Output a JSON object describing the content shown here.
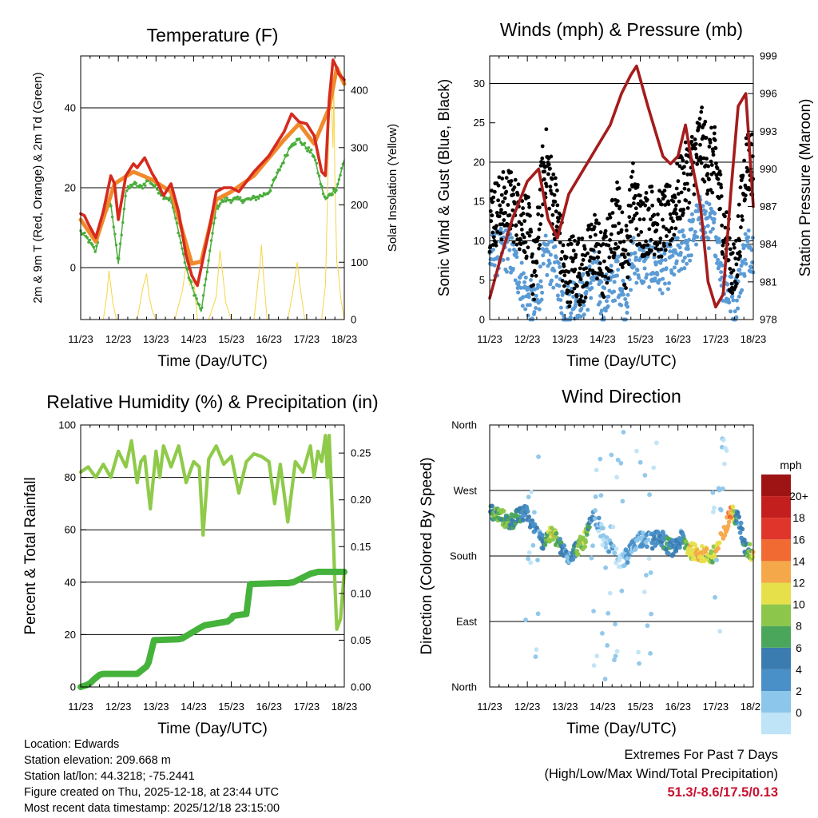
{
  "chart_data": [
    {
      "id": "temperature",
      "type": "line",
      "title": "Temperature (F)",
      "xlabel": "Time (Day/UTC)",
      "ylabel": "2m & 9m T (Red, Orange) & 2m Td (Green)",
      "ylabel_right": "Solar Insolation (Yellow)",
      "xlim": [
        0,
        7
      ],
      "x_ticks": [
        "11/23",
        "12/23",
        "13/23",
        "14/23",
        "15/23",
        "16/23",
        "17/23",
        "18/23"
      ],
      "ylim": [
        -13,
        53
      ],
      "y_ticks": [
        0,
        20,
        40
      ],
      "ylim_right": [
        0,
        460
      ],
      "y_ticks_right": [
        0,
        100,
        200,
        300,
        400
      ],
      "grid_y": [
        0,
        20,
        40
      ],
      "series": [
        {
          "name": "2m T",
          "color": "#d62a1e",
          "x": [
            0,
            0.1,
            0.2,
            0.4,
            0.6,
            0.8,
            0.9,
            1.0,
            1.2,
            1.4,
            1.5,
            1.7,
            1.9,
            2.0,
            2.2,
            2.4,
            2.6,
            2.8,
            2.95,
            3.1,
            3.2,
            3.4,
            3.6,
            3.8,
            4.0,
            4.2,
            4.4,
            4.6,
            4.8,
            5.0,
            5.2,
            5.4,
            5.6,
            5.8,
            6.0,
            6.2,
            6.4,
            6.5,
            6.6,
            6.7,
            6.8,
            6.85,
            7.0
          ],
          "values": [
            13.5,
            13,
            11,
            7.5,
            14,
            23,
            21,
            12,
            23,
            26,
            25,
            27.5,
            23.5,
            22,
            18,
            21,
            14,
            3,
            -2,
            -4.5,
            0,
            9,
            19,
            20,
            20,
            19,
            21.5,
            24,
            26,
            28,
            31,
            34,
            38.5,
            36.5,
            36,
            33,
            24,
            23,
            42,
            52,
            50,
            48.5,
            47
          ]
        },
        {
          "name": "9m T",
          "color": "#f08a2c",
          "x": [
            0,
            0.4,
            0.9,
            1.4,
            1.9,
            2.4,
            2.95,
            3.2,
            3.6,
            4.0,
            4.6,
            5.4,
            5.8,
            6.2,
            6.6,
            6.8,
            7.0
          ],
          "values": [
            12,
            6.5,
            21,
            24,
            22,
            19,
            1,
            1.5,
            17,
            19,
            23,
            32,
            36,
            31,
            40,
            50,
            46
          ]
        },
        {
          "name": "2m Td",
          "color": "#49ad3a",
          "x": [
            0,
            0.2,
            0.4,
            0.6,
            0.8,
            1.0,
            1.2,
            1.4,
            1.6,
            1.8,
            2.0,
            2.2,
            2.4,
            2.6,
            2.8,
            3.0,
            3.2,
            3.4,
            3.6,
            3.8,
            4.0,
            4.2,
            4.5,
            4.8,
            5.0,
            5.3,
            5.6,
            5.8,
            6.0,
            6.2,
            6.4,
            6.5,
            6.6,
            6.8,
            7.0
          ],
          "values": [
            9,
            7,
            4,
            14,
            16,
            1,
            19,
            21,
            20,
            22,
            20,
            18,
            17,
            9,
            0,
            -6,
            -11,
            2,
            15,
            17,
            17,
            17,
            17,
            18,
            19,
            25,
            31,
            32,
            30,
            28,
            20,
            17,
            18,
            20,
            27
          ]
        },
        {
          "name": "Solar Insolation",
          "color": "#f5d547",
          "axis": "right",
          "x": [
            0,
            0.6,
            0.7,
            0.75,
            0.8,
            0.85,
            0.95,
            1.5,
            1.65,
            1.75,
            1.82,
            1.9,
            2.0,
            2.5,
            2.7,
            2.8,
            2.9,
            3.0,
            3.1,
            3.4,
            3.6,
            3.7,
            3.78,
            3.85,
            4.0,
            4.6,
            4.75,
            4.8,
            4.85,
            4.95,
            5.5,
            5.65,
            5.75,
            5.82,
            5.95,
            6.4,
            6.5,
            6.55,
            6.6,
            6.65,
            6.7,
            6.72,
            6.75,
            6.8,
            6.85,
            6.9,
            7.0
          ],
          "values": [
            0,
            0,
            45,
            85,
            60,
            30,
            0,
            0,
            55,
            80,
            40,
            15,
            0,
            0,
            50,
            95,
            60,
            70,
            0,
            0,
            40,
            120,
            75,
            30,
            0,
            0,
            90,
            130,
            80,
            0,
            0,
            55,
            100,
            60,
            0,
            0,
            60,
            200,
            360,
            390,
            300,
            420,
            250,
            100,
            80,
            40,
            0
          ]
        }
      ]
    },
    {
      "id": "winds",
      "type": "scatter",
      "title": "Winds (mph) & Pressure (mb)",
      "xlabel": "Time (Day/UTC)",
      "ylabel": "Sonic Wind & Gust (Blue, Black)",
      "ylabel_right": "Station Pressure (Maroon)",
      "xlim": [
        0,
        7
      ],
      "x_ticks": [
        "11/23",
        "12/23",
        "13/23",
        "14/23",
        "15/23",
        "16/23",
        "17/23",
        "18/23"
      ],
      "ylim": [
        0,
        33.5
      ],
      "y_ticks": [
        0,
        5,
        10,
        15,
        20,
        25,
        30
      ],
      "ylim_right": [
        978,
        999
      ],
      "y_ticks_right": [
        978,
        981,
        984,
        987,
        990,
        993,
        996,
        999
      ],
      "grid_y": [
        10,
        20,
        30
      ],
      "wind_envelope": {
        "x": [
          0,
          0.5,
          1.0,
          1.2,
          1.4,
          1.5,
          1.8,
          2.0,
          2.2,
          2.5,
          2.8,
          3.0,
          3.4,
          3.6,
          3.8,
          4.0,
          4.3,
          4.5,
          4.8,
          5.0,
          5.3,
          5.5,
          5.6,
          5.8,
          6.0,
          6.2,
          6.5,
          6.8,
          7.0
        ],
        "speed": [
          8,
          9,
          3,
          1,
          6,
          8,
          6,
          1,
          3,
          3,
          6,
          2,
          6,
          2,
          8,
          7,
          7,
          6,
          7,
          8,
          10,
          12,
          13,
          12,
          11,
          5,
          2,
          9,
          9
        ],
        "gust": [
          13,
          15,
          12,
          5,
          18,
          20,
          13,
          5,
          7,
          6,
          10,
          6,
          14,
          7,
          16,
          12,
          13,
          12,
          13,
          16,
          19,
          21,
          23,
          20,
          20,
          12,
          5,
          20,
          20
        ]
      },
      "series": [
        {
          "name": "Station Pressure",
          "color": "#a51c1c",
          "axis": "right",
          "x": [
            0,
            0.3,
            0.6,
            1.0,
            1.3,
            1.55,
            1.8,
            2.1,
            2.5,
            2.9,
            3.2,
            3.5,
            3.75,
            3.9,
            4.2,
            4.4,
            4.6,
            4.8,
            5.0,
            5.2,
            5.4,
            5.6,
            5.8,
            6.0,
            6.2,
            6.4,
            6.6,
            6.8,
            7.0
          ],
          "values": [
            979.7,
            983,
            986,
            989,
            990,
            986,
            984.5,
            988,
            990,
            992,
            993.5,
            996,
            997.5,
            998.2,
            995,
            993,
            991,
            990.4,
            991,
            993.5,
            990,
            987,
            981,
            979,
            980,
            988,
            995,
            996,
            987
          ]
        }
      ]
    },
    {
      "id": "humidity",
      "type": "line",
      "title": "Relative Humidity (%) & Precipitation (in)",
      "xlabel": "Time (Day/UTC)",
      "ylabel": "Percent & Total Rainfall",
      "xlim": [
        0,
        7
      ],
      "x_ticks": [
        "11/23",
        "12/23",
        "13/23",
        "14/23",
        "15/23",
        "16/23",
        "17/23",
        "18/23"
      ],
      "ylim": [
        0,
        100
      ],
      "y_ticks": [
        0,
        20,
        40,
        60,
        80,
        100
      ],
      "ylim_right": [
        0,
        0.28
      ],
      "y_ticks_right": [
        "0.00",
        "0.05",
        "0.10",
        "0.15",
        "0.20",
        "0.25"
      ],
      "grid_y": [
        20,
        40,
        60,
        80
      ],
      "series": [
        {
          "name": "Relative Humidity",
          "color": "#8fca4a",
          "x": [
            0,
            0.2,
            0.4,
            0.6,
            0.8,
            1.0,
            1.2,
            1.35,
            1.5,
            1.6,
            1.7,
            1.85,
            2.0,
            2.1,
            2.2,
            2.4,
            2.6,
            2.8,
            3.0,
            3.15,
            3.25,
            3.4,
            3.6,
            3.8,
            4.0,
            4.2,
            4.4,
            4.6,
            4.8,
            5.0,
            5.15,
            5.3,
            5.5,
            5.7,
            5.9,
            6.1,
            6.2,
            6.3,
            6.4,
            6.5,
            6.55,
            6.6,
            6.7,
            6.75,
            6.8,
            6.9,
            7.0
          ],
          "values": [
            82,
            84,
            80,
            85,
            80,
            90,
            84,
            94,
            78,
            86,
            88,
            68,
            90,
            80,
            92,
            84,
            92,
            78,
            86,
            84,
            58,
            87,
            92,
            85,
            88,
            74,
            86,
            89,
            88,
            86,
            70,
            85,
            63,
            86,
            82,
            92,
            80,
            90,
            86,
            96,
            80,
            96,
            60,
            40,
            22,
            26,
            44
          ]
        },
        {
          "name": "Total Precipitation",
          "color": "#45b23c",
          "axis": "right",
          "x": [
            0,
            0.15,
            0.25,
            0.35,
            0.5,
            0.6,
            1.0,
            1.5,
            1.75,
            1.8,
            1.95,
            2.6,
            2.7,
            3.2,
            3.3,
            3.9,
            4.0,
            4.05,
            4.4,
            4.5,
            5.3,
            5.5,
            5.65,
            6.1,
            6.2,
            6.3,
            7.0
          ],
          "values": [
            0,
            0.002,
            0.004,
            0.008,
            0.013,
            0.014,
            0.014,
            0.014,
            0.022,
            0.026,
            0.05,
            0.051,
            0.052,
            0.064,
            0.066,
            0.07,
            0.073,
            0.076,
            0.078,
            0.11,
            0.111,
            0.111,
            0.112,
            0.121,
            0.122,
            0.123,
            0.123
          ]
        }
      ]
    },
    {
      "id": "direction",
      "type": "scatter",
      "title": "Wind Direction",
      "xlabel": "Time (Day/UTC)",
      "ylabel": "Direction (Colored By Speed)",
      "xlim": [
        0,
        7
      ],
      "x_ticks": [
        "11/23",
        "12/23",
        "13/23",
        "14/23",
        "15/23",
        "16/23",
        "17/23",
        "18/23"
      ],
      "ylim": [
        0,
        360
      ],
      "y_ticks": [
        "North",
        "East",
        "South",
        "West",
        "North"
      ],
      "grid_y": [
        90,
        180,
        270
      ],
      "colorbar_title": "mph",
      "colorbar_labels": [
        "0",
        "2",
        "4",
        "6",
        "8",
        "10",
        "12",
        "14",
        "16",
        "18",
        "20+"
      ],
      "colorbar_colors": [
        "#bfe3f7",
        "#8cc6ea",
        "#4a90c8",
        "#3a7cb0",
        "#4aa65a",
        "#8cc64a",
        "#e6e04a",
        "#f5a84a",
        "#f06a32",
        "#e0352a",
        "#c41f1f",
        "#9e1414"
      ],
      "direction_track": {
        "x": [
          0,
          0.3,
          0.5,
          0.7,
          0.9,
          1.0,
          1.2,
          1.4,
          1.5,
          1.7,
          1.9,
          2.1,
          2.3,
          2.5,
          2.7,
          2.8,
          3.0,
          3.2,
          3.5,
          3.7,
          3.9,
          4.1,
          4.3,
          4.5,
          4.7,
          4.9,
          5.1,
          5.3,
          5.5,
          5.7,
          5.9,
          6.0,
          6.2,
          6.4,
          6.6,
          6.8,
          7.0
        ],
        "dir": [
          240,
          235,
          225,
          232,
          238,
          240,
          215,
          200,
          205,
          210,
          190,
          180,
          190,
          200,
          225,
          235,
          210,
          190,
          170,
          185,
          200,
          205,
          200,
          210,
          195,
          190,
          205,
          188,
          185,
          182,
          180,
          185,
          210,
          240,
          230,
          190,
          183
        ],
        "speed": [
          7,
          9,
          8,
          7,
          6,
          6,
          4,
          5,
          8,
          12,
          6,
          3,
          7,
          12,
          4,
          3,
          1,
          2,
          1,
          2,
          3,
          2,
          4,
          5,
          6,
          5,
          4,
          12,
          14,
          12,
          10,
          12,
          14,
          16,
          4,
          6,
          12
        ]
      }
    }
  ],
  "info": {
    "location": "Location: Edwards",
    "elevation": "Station elevation: 209.668 m",
    "latlon": "Station lat/lon: 44.3218; -75.2441",
    "created": "Figure created on Thu, 2025-12-18, at 23:44 UTC",
    "timestamp": "Most recent data timestamp: 2025/12/18 23:15:00"
  },
  "extremes": {
    "title": "Extremes For Past 7 Days",
    "subtitle": "(High/Low/Max Wind/Total Precipitation)",
    "values": "51.3/-8.6/17.5/0.13"
  }
}
